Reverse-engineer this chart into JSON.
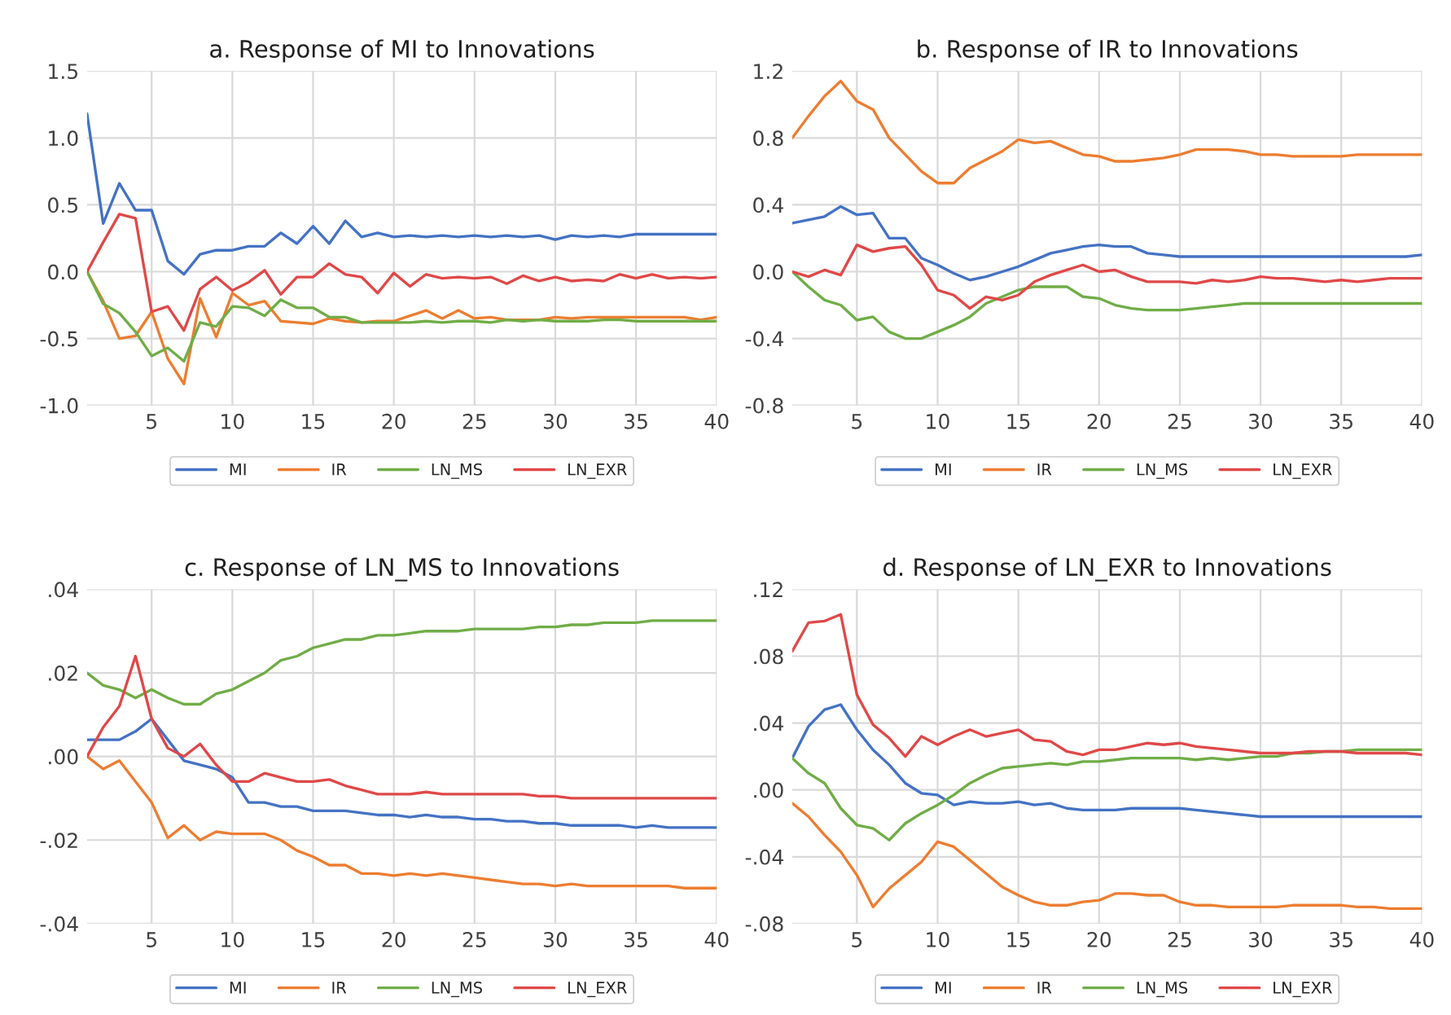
{
  "chart_data": [
    {
      "type": "line",
      "title": "a. Response of MI to Innovations",
      "x": [
        1,
        2,
        3,
        4,
        5,
        6,
        7,
        8,
        9,
        10,
        11,
        12,
        13,
        14,
        15,
        16,
        17,
        18,
        19,
        20,
        21,
        22,
        23,
        24,
        25,
        26,
        27,
        28,
        29,
        30,
        31,
        32,
        33,
        34,
        35,
        36,
        37,
        38,
        39,
        40
      ],
      "xlim": [
        1,
        40
      ],
      "xticks": [
        5,
        10,
        15,
        20,
        25,
        30,
        35,
        40
      ],
      "ylim": [
        -1.0,
        1.5
      ],
      "yticks": [
        {
          "value": -1.0,
          "label": "-1.0"
        },
        {
          "value": -0.5,
          "label": "-0.5"
        },
        {
          "value": 0.0,
          "label": "0.0"
        },
        {
          "value": 0.5,
          "label": "0.5"
        },
        {
          "value": 1.0,
          "label": "1.0"
        },
        {
          "value": 1.5,
          "label": "1.5"
        }
      ],
      "grid": true,
      "legend": "bottom",
      "series": [
        {
          "name": "MI",
          "color": "#4472c4",
          "values": [
            1.18,
            0.36,
            0.66,
            0.46,
            0.46,
            0.08,
            -0.02,
            0.13,
            0.16,
            0.16,
            0.19,
            0.19,
            0.29,
            0.21,
            0.34,
            0.21,
            0.38,
            0.26,
            0.29,
            0.26,
            0.27,
            0.26,
            0.27,
            0.26,
            0.27,
            0.26,
            0.27,
            0.26,
            0.27,
            0.24,
            0.27,
            0.26,
            0.27,
            0.26,
            0.28,
            0.28,
            0.28,
            0.28,
            0.28,
            0.28
          ]
        },
        {
          "name": "IR",
          "color": "#ed7d31",
          "values": [
            0,
            -0.22,
            -0.5,
            -0.48,
            -0.3,
            -0.65,
            -0.84,
            -0.2,
            -0.49,
            -0.16,
            -0.25,
            -0.22,
            -0.37,
            -0.38,
            -0.39,
            -0.35,
            -0.37,
            -0.38,
            -0.37,
            -0.37,
            -0.33,
            -0.29,
            -0.35,
            -0.29,
            -0.35,
            -0.34,
            -0.36,
            -0.36,
            -0.36,
            -0.34,
            -0.35,
            -0.34,
            -0.34,
            -0.34,
            -0.34,
            -0.34,
            -0.34,
            -0.34,
            -0.36,
            -0.34
          ]
        },
        {
          "name": "LN_MS",
          "color": "#70ad47",
          "values": [
            0,
            -0.24,
            -0.31,
            -0.45,
            -0.63,
            -0.57,
            -0.67,
            -0.38,
            -0.41,
            -0.26,
            -0.27,
            -0.33,
            -0.21,
            -0.27,
            -0.27,
            -0.34,
            -0.34,
            -0.38,
            -0.38,
            -0.38,
            -0.38,
            -0.37,
            -0.38,
            -0.37,
            -0.37,
            -0.38,
            -0.36,
            -0.37,
            -0.36,
            -0.37,
            -0.37,
            -0.37,
            -0.36,
            -0.36,
            -0.37,
            -0.37,
            -0.37,
            -0.37,
            -0.37,
            -0.37
          ]
        },
        {
          "name": "LN_EXR",
          "color": "#e04848",
          "values": [
            0,
            0.22,
            0.43,
            0.4,
            -0.3,
            -0.26,
            -0.44,
            -0.13,
            -0.04,
            -0.14,
            -0.08,
            0.01,
            -0.17,
            -0.04,
            -0.04,
            0.06,
            -0.02,
            -0.04,
            -0.16,
            -0.01,
            -0.11,
            -0.02,
            -0.05,
            -0.04,
            -0.05,
            -0.04,
            -0.09,
            -0.03,
            -0.07,
            -0.04,
            -0.07,
            -0.06,
            -0.07,
            -0.02,
            -0.05,
            -0.02,
            -0.05,
            -0.04,
            -0.05,
            -0.04
          ]
        }
      ]
    },
    {
      "type": "line",
      "title": "b. Response of IR to Innovations",
      "x": [
        1,
        2,
        3,
        4,
        5,
        6,
        7,
        8,
        9,
        10,
        11,
        12,
        13,
        14,
        15,
        16,
        17,
        18,
        19,
        20,
        21,
        22,
        23,
        24,
        25,
        26,
        27,
        28,
        29,
        30,
        31,
        32,
        33,
        34,
        35,
        36,
        37,
        38,
        39,
        40
      ],
      "xlim": [
        1,
        40
      ],
      "xticks": [
        5,
        10,
        15,
        20,
        25,
        30,
        35,
        40
      ],
      "ylim": [
        -0.8,
        1.2
      ],
      "yticks": [
        {
          "value": -0.8,
          "label": "-0.8"
        },
        {
          "value": -0.4,
          "label": "-0.4"
        },
        {
          "value": 0.0,
          "label": "0.0"
        },
        {
          "value": 0.4,
          "label": "0.4"
        },
        {
          "value": 0.8,
          "label": "0.8"
        },
        {
          "value": 1.2,
          "label": "1.2"
        }
      ],
      "grid": true,
      "legend": "bottom",
      "series": [
        {
          "name": "MI",
          "color": "#4472c4",
          "values": [
            0.29,
            0.31,
            0.33,
            0.39,
            0.34,
            0.35,
            0.2,
            0.2,
            0.08,
            0.04,
            -0.01,
            -0.05,
            -0.03,
            0,
            0.03,
            0.07,
            0.11,
            0.13,
            0.15,
            0.16,
            0.15,
            0.15,
            0.11,
            0.1,
            0.09,
            0.09,
            0.09,
            0.09,
            0.09,
            0.09,
            0.09,
            0.09,
            0.09,
            0.09,
            0.09,
            0.09,
            0.09,
            0.09,
            0.09,
            0.1
          ]
        },
        {
          "name": "IR",
          "color": "#ed7d31",
          "values": [
            0.8,
            0.93,
            1.05,
            1.14,
            1.02,
            0.97,
            0.8,
            0.7,
            0.6,
            0.53,
            0.53,
            0.62,
            0.67,
            0.72,
            0.79,
            0.77,
            0.78,
            0.74,
            0.7,
            0.69,
            0.66,
            0.66,
            0.67,
            0.68,
            0.7,
            0.73,
            0.73,
            0.73,
            0.72,
            0.7,
            0.7,
            0.69,
            0.69,
            0.69,
            0.69,
            0.7,
            0.7,
            0.7,
            0.7,
            0.7
          ]
        },
        {
          "name": "LN_MS",
          "color": "#70ad47",
          "values": [
            0,
            -0.09,
            -0.17,
            -0.2,
            -0.29,
            -0.27,
            -0.36,
            -0.4,
            -0.4,
            -0.36,
            -0.32,
            -0.27,
            -0.19,
            -0.15,
            -0.11,
            -0.09,
            -0.09,
            -0.09,
            -0.15,
            -0.16,
            -0.2,
            -0.22,
            -0.23,
            -0.23,
            -0.23,
            -0.22,
            -0.21,
            -0.2,
            -0.19,
            -0.19,
            -0.19,
            -0.19,
            -0.19,
            -0.19,
            -0.19,
            -0.19,
            -0.19,
            -0.19,
            -0.19,
            -0.19
          ]
        },
        {
          "name": "LN_EXR",
          "color": "#e04848",
          "values": [
            0,
            -0.03,
            0.01,
            -0.02,
            0.16,
            0.12,
            0.14,
            0.15,
            0.04,
            -0.11,
            -0.14,
            -0.22,
            -0.15,
            -0.17,
            -0.14,
            -0.06,
            -0.02,
            0.01,
            0.04,
            0,
            0.01,
            -0.03,
            -0.06,
            -0.06,
            -0.06,
            -0.07,
            -0.05,
            -0.06,
            -0.05,
            -0.03,
            -0.04,
            -0.04,
            -0.05,
            -0.06,
            -0.05,
            -0.06,
            -0.05,
            -0.04,
            -0.04,
            -0.04
          ]
        }
      ]
    },
    {
      "type": "line",
      "title": "c. Response of LN_MS to Innovations",
      "x": [
        1,
        2,
        3,
        4,
        5,
        6,
        7,
        8,
        9,
        10,
        11,
        12,
        13,
        14,
        15,
        16,
        17,
        18,
        19,
        20,
        21,
        22,
        23,
        24,
        25,
        26,
        27,
        28,
        29,
        30,
        31,
        32,
        33,
        34,
        35,
        36,
        37,
        38,
        39,
        40
      ],
      "xlim": [
        1,
        40
      ],
      "xticks": [
        5,
        10,
        15,
        20,
        25,
        30,
        35,
        40
      ],
      "ylim": [
        -0.04,
        0.04
      ],
      "yticks": [
        {
          "value": -0.04,
          "label": "-.04"
        },
        {
          "value": -0.02,
          "label": "-.02"
        },
        {
          "value": 0.0,
          "label": ".00"
        },
        {
          "value": 0.02,
          "label": ".02"
        },
        {
          "value": 0.04,
          "label": ".04"
        }
      ],
      "grid": true,
      "legend": "bottom",
      "series": [
        {
          "name": "MI",
          "color": "#4472c4",
          "values": [
            0.004,
            0.004,
            0.004,
            0.006,
            0.009,
            0.004,
            -0.001,
            -0.002,
            -0.003,
            -0.005,
            -0.011,
            -0.011,
            -0.012,
            -0.012,
            -0.013,
            -0.013,
            -0.013,
            -0.0135,
            -0.014,
            -0.014,
            -0.0145,
            -0.014,
            -0.0145,
            -0.0145,
            -0.015,
            -0.015,
            -0.0155,
            -0.0155,
            -0.016,
            -0.016,
            -0.0165,
            -0.0165,
            -0.0165,
            -0.0165,
            -0.017,
            -0.0165,
            -0.017,
            -0.017,
            -0.017,
            -0.017
          ]
        },
        {
          "name": "IR",
          "color": "#ed7d31",
          "values": [
            0,
            -0.003,
            -0.001,
            -0.006,
            -0.011,
            -0.0195,
            -0.0165,
            -0.02,
            -0.018,
            -0.0185,
            -0.0185,
            -0.0185,
            -0.02,
            -0.0225,
            -0.024,
            -0.026,
            -0.026,
            -0.028,
            -0.028,
            -0.0285,
            -0.028,
            -0.0285,
            -0.028,
            -0.0285,
            -0.029,
            -0.0295,
            -0.03,
            -0.0305,
            -0.0305,
            -0.031,
            -0.0305,
            -0.031,
            -0.031,
            -0.031,
            -0.031,
            -0.031,
            -0.031,
            -0.0315,
            -0.0315,
            -0.0315
          ]
        },
        {
          "name": "LN_MS",
          "color": "#70ad47",
          "values": [
            0.02,
            0.017,
            0.016,
            0.014,
            0.016,
            0.014,
            0.0125,
            0.0125,
            0.015,
            0.016,
            0.018,
            0.02,
            0.023,
            0.024,
            0.026,
            0.027,
            0.028,
            0.028,
            0.029,
            0.029,
            0.0295,
            0.03,
            0.03,
            0.03,
            0.0305,
            0.0305,
            0.0305,
            0.0305,
            0.031,
            0.031,
            0.0315,
            0.0315,
            0.032,
            0.032,
            0.032,
            0.0325,
            0.0325,
            0.0325,
            0.0325,
            0.0325
          ]
        },
        {
          "name": "LN_EXR",
          "color": "#e04848",
          "values": [
            0,
            0.007,
            0.012,
            0.024,
            0.009,
            0.002,
            0,
            0.003,
            -0.002,
            -0.006,
            -0.006,
            -0.004,
            -0.005,
            -0.006,
            -0.006,
            -0.0055,
            -0.007,
            -0.008,
            -0.009,
            -0.009,
            -0.009,
            -0.0085,
            -0.009,
            -0.009,
            -0.009,
            -0.009,
            -0.009,
            -0.009,
            -0.0095,
            -0.0095,
            -0.01,
            -0.01,
            -0.01,
            -0.01,
            -0.01,
            -0.01,
            -0.01,
            -0.01,
            -0.01,
            -0.01
          ]
        }
      ]
    },
    {
      "type": "line",
      "title": "d. Response of LN_EXR to Innovations",
      "x": [
        1,
        2,
        3,
        4,
        5,
        6,
        7,
        8,
        9,
        10,
        11,
        12,
        13,
        14,
        15,
        16,
        17,
        18,
        19,
        20,
        21,
        22,
        23,
        24,
        25,
        26,
        27,
        28,
        29,
        30,
        31,
        32,
        33,
        34,
        35,
        36,
        37,
        38,
        39,
        40
      ],
      "xlim": [
        1,
        40
      ],
      "xticks": [
        5,
        10,
        15,
        20,
        25,
        30,
        35,
        40
      ],
      "ylim": [
        -0.08,
        0.12
      ],
      "yticks": [
        {
          "value": -0.08,
          "label": "-.08"
        },
        {
          "value": -0.04,
          "label": "-.04"
        },
        {
          "value": 0.0,
          "label": ".00"
        },
        {
          "value": 0.04,
          "label": ".04"
        },
        {
          "value": 0.08,
          "label": ".08"
        },
        {
          "value": 0.12,
          "label": ".12"
        }
      ],
      "grid": true,
      "legend": "bottom",
      "series": [
        {
          "name": "MI",
          "color": "#4472c4",
          "values": [
            0.019,
            0.038,
            0.048,
            0.051,
            0.036,
            0.024,
            0.015,
            0.004,
            -0.002,
            -0.003,
            -0.009,
            -0.007,
            -0.008,
            -0.008,
            -0.007,
            -0.009,
            -0.008,
            -0.011,
            -0.012,
            -0.012,
            -0.012,
            -0.011,
            -0.011,
            -0.011,
            -0.011,
            -0.012,
            -0.013,
            -0.014,
            -0.015,
            -0.016,
            -0.016,
            -0.016,
            -0.016,
            -0.016,
            -0.016,
            -0.016,
            -0.016,
            -0.016,
            -0.016,
            -0.016
          ]
        },
        {
          "name": "IR",
          "color": "#ed7d31",
          "values": [
            -0.008,
            -0.016,
            -0.027,
            -0.037,
            -0.051,
            -0.07,
            -0.059,
            -0.051,
            -0.043,
            -0.031,
            -0.034,
            -0.042,
            -0.05,
            -0.058,
            -0.063,
            -0.067,
            -0.069,
            -0.069,
            -0.067,
            -0.066,
            -0.062,
            -0.062,
            -0.063,
            -0.063,
            -0.067,
            -0.069,
            -0.069,
            -0.07,
            -0.07,
            -0.07,
            -0.07,
            -0.069,
            -0.069,
            -0.069,
            -0.069,
            -0.07,
            -0.07,
            -0.071,
            -0.071,
            -0.071
          ]
        },
        {
          "name": "LN_MS",
          "color": "#70ad47",
          "values": [
            0.019,
            0.01,
            0.004,
            -0.011,
            -0.021,
            -0.023,
            -0.03,
            -0.02,
            -0.014,
            -0.009,
            -0.003,
            0.004,
            0.009,
            0.013,
            0.014,
            0.015,
            0.016,
            0.015,
            0.017,
            0.017,
            0.018,
            0.019,
            0.019,
            0.019,
            0.019,
            0.018,
            0.019,
            0.018,
            0.019,
            0.02,
            0.02,
            0.022,
            0.022,
            0.023,
            0.023,
            0.024,
            0.024,
            0.024,
            0.024,
            0.024
          ]
        },
        {
          "name": "LN_EXR",
          "color": "#e04848",
          "values": [
            0.083,
            0.1,
            0.101,
            0.105,
            0.057,
            0.039,
            0.031,
            0.02,
            0.032,
            0.027,
            0.032,
            0.036,
            0.032,
            0.034,
            0.036,
            0.03,
            0.029,
            0.023,
            0.021,
            0.024,
            0.024,
            0.026,
            0.028,
            0.027,
            0.028,
            0.026,
            0.025,
            0.024,
            0.023,
            0.022,
            0.022,
            0.022,
            0.023,
            0.023,
            0.023,
            0.022,
            0.022,
            0.022,
            0.022,
            0.021
          ]
        }
      ]
    }
  ]
}
